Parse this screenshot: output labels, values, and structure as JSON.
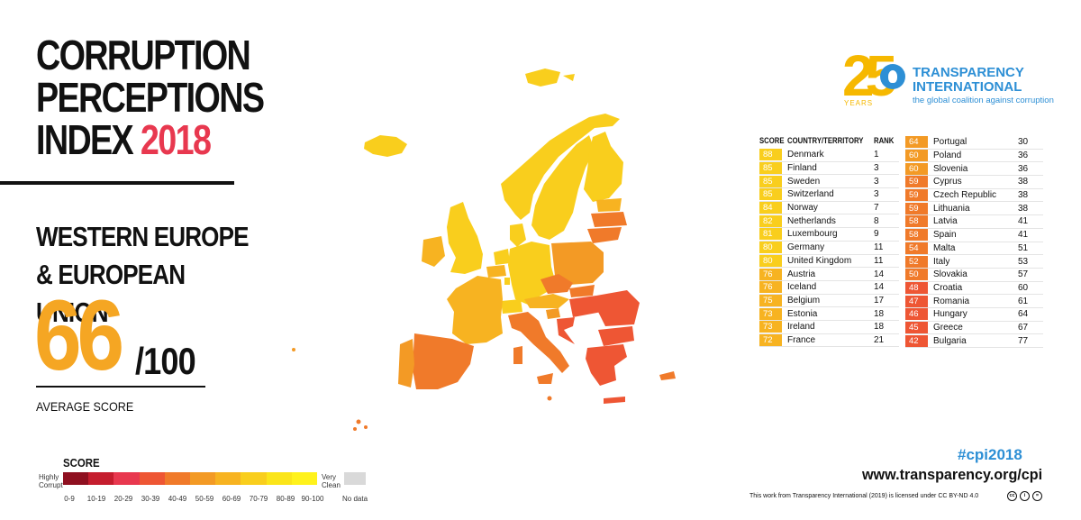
{
  "header": {
    "title_line1": "CORRUPTION",
    "title_line2": "PERCEPTIONS",
    "title_line3_word": "INDEX",
    "title_year": "2018"
  },
  "region": {
    "line1": "WESTERN EUROPE",
    "line2": "& EUROPEAN UNION"
  },
  "average": {
    "score": "66",
    "max": "/100",
    "label": "AVERAGE SCORE"
  },
  "legend": {
    "title": "SCORE",
    "low_label_1": "Highly",
    "low_label_2": "Corrupt",
    "high_label_1": "Very",
    "high_label_2": "Clean",
    "ranges": [
      "0-9",
      "10-19",
      "20-29",
      "30-39",
      "40-49",
      "50-59",
      "60-69",
      "70-79",
      "80-89",
      "90-100"
    ],
    "colors": [
      "#8f1020",
      "#c51d2e",
      "#e8384f",
      "#ee5634",
      "#f07a2a",
      "#f39a25",
      "#f7b321",
      "#f9ce1d",
      "#fbe51a",
      "#fff21c"
    ],
    "no_data_label": "No data",
    "no_data_color": "#d9d9d9"
  },
  "logo": {
    "number": "25",
    "years": "YEARS",
    "name_line1": "TRANSPARENCY",
    "name_line2": "INTERNATIONAL",
    "tagline": "the global coalition against corruption",
    "brand_color": "#2d8fd5",
    "accent_color": "#f6b800"
  },
  "table": {
    "headers": {
      "score": "SCORE",
      "country": "COUNTRY/TERRITORY",
      "rank": "RANK"
    },
    "left": [
      {
        "score": "88",
        "country": "Denmark",
        "rank": "1",
        "color": "#f9ce1d"
      },
      {
        "score": "85",
        "country": "Finland",
        "rank": "3",
        "color": "#f9ce1d"
      },
      {
        "score": "85",
        "country": "Sweden",
        "rank": "3",
        "color": "#f9ce1d"
      },
      {
        "score": "85",
        "country": "Switzerland",
        "rank": "3",
        "color": "#f9ce1d"
      },
      {
        "score": "84",
        "country": "Norway",
        "rank": "7",
        "color": "#f9ce1d"
      },
      {
        "score": "82",
        "country": "Netherlands",
        "rank": "8",
        "color": "#f9ce1d"
      },
      {
        "score": "81",
        "country": "Luxembourg",
        "rank": "9",
        "color": "#f9ce1d"
      },
      {
        "score": "80",
        "country": "Germany",
        "rank": "11",
        "color": "#f9ce1d"
      },
      {
        "score": "80",
        "country": "United Kingdom",
        "rank": "11",
        "color": "#f9ce1d"
      },
      {
        "score": "76",
        "country": "Austria",
        "rank": "14",
        "color": "#f7b321"
      },
      {
        "score": "76",
        "country": "Iceland",
        "rank": "14",
        "color": "#f7b321"
      },
      {
        "score": "75",
        "country": "Belgium",
        "rank": "17",
        "color": "#f7b321"
      },
      {
        "score": "73",
        "country": "Estonia",
        "rank": "18",
        "color": "#f7b321"
      },
      {
        "score": "73",
        "country": "Ireland",
        "rank": "18",
        "color": "#f7b321"
      },
      {
        "score": "72",
        "country": "France",
        "rank": "21",
        "color": "#f7b321"
      }
    ],
    "right": [
      {
        "score": "64",
        "country": "Portugal",
        "rank": "30",
        "color": "#f39a25"
      },
      {
        "score": "60",
        "country": "Poland",
        "rank": "36",
        "color": "#f39a25"
      },
      {
        "score": "60",
        "country": "Slovenia",
        "rank": "36",
        "color": "#f39a25"
      },
      {
        "score": "59",
        "country": "Cyprus",
        "rank": "38",
        "color": "#f07a2a"
      },
      {
        "score": "59",
        "country": "Czech Republic",
        "rank": "38",
        "color": "#f07a2a"
      },
      {
        "score": "59",
        "country": "Lithuania",
        "rank": "38",
        "color": "#f07a2a"
      },
      {
        "score": "58",
        "country": "Latvia",
        "rank": "41",
        "color": "#f07a2a"
      },
      {
        "score": "58",
        "country": "Spain",
        "rank": "41",
        "color": "#f07a2a"
      },
      {
        "score": "54",
        "country": "Malta",
        "rank": "51",
        "color": "#f07a2a"
      },
      {
        "score": "52",
        "country": "Italy",
        "rank": "53",
        "color": "#f07a2a"
      },
      {
        "score": "50",
        "country": "Slovakia",
        "rank": "57",
        "color": "#f07a2a"
      },
      {
        "score": "48",
        "country": "Croatia",
        "rank": "60",
        "color": "#ee5634"
      },
      {
        "score": "47",
        "country": "Romania",
        "rank": "61",
        "color": "#ee5634"
      },
      {
        "score": "46",
        "country": "Hungary",
        "rank": "64",
        "color": "#ee5634"
      },
      {
        "score": "45",
        "country": "Greece",
        "rank": "67",
        "color": "#ee5634"
      },
      {
        "score": "42",
        "country": "Bulgaria",
        "rank": "77",
        "color": "#ee5634"
      }
    ]
  },
  "footer": {
    "hashtag": "#cpi2018",
    "url": "www.transparency.org/cpi",
    "license": "This work from Transparency International (2019) is licensed under CC BY-ND 4.0"
  }
}
